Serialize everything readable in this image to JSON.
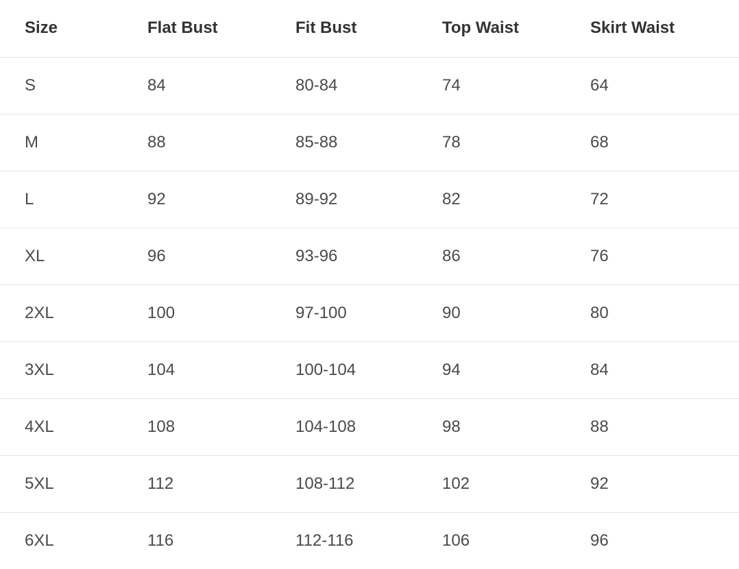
{
  "size_chart": {
    "columns": [
      "Size",
      "Flat Bust",
      "Fit Bust",
      "Top Waist",
      "Skirt Waist"
    ],
    "rows": [
      [
        "S",
        "84",
        "80-84",
        "74",
        "64"
      ],
      [
        "M",
        "88",
        "85-88",
        "78",
        "68"
      ],
      [
        "L",
        "92",
        "89-92",
        "82",
        "72"
      ],
      [
        "XL",
        "96",
        "93-96",
        "86",
        "76"
      ],
      [
        "2XL",
        "100",
        "97-100",
        "90",
        "80"
      ],
      [
        "3XL",
        "104",
        "100-104",
        "94",
        "84"
      ],
      [
        "4XL",
        "108",
        "104-108",
        "98",
        "88"
      ],
      [
        "5XL",
        "112",
        "108-112",
        "102",
        "92"
      ],
      [
        "6XL",
        "116",
        "112-116",
        "106",
        "96"
      ]
    ],
    "colors": {
      "header_text": "#333333",
      "body_text": "#4a4a4a",
      "divider": "#e5e5e5",
      "background": "#ffffff"
    }
  }
}
